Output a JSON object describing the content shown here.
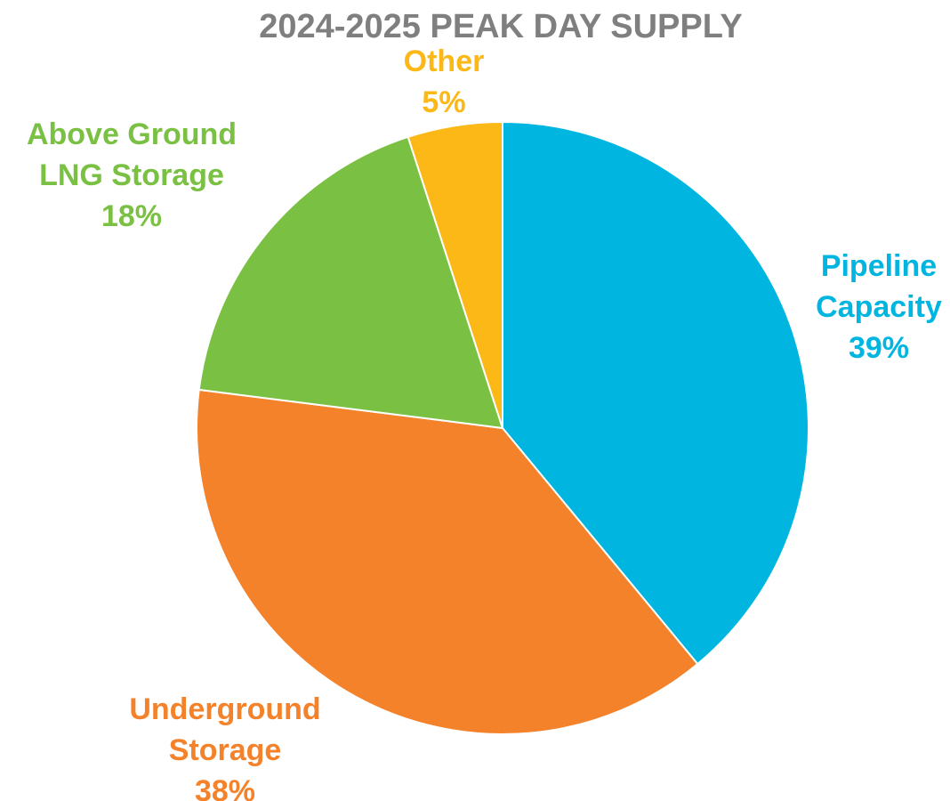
{
  "chart_data": {
    "type": "pie",
    "title": "2024-2025 PEAK DAY SUPPLY",
    "start_angle_deg": 0,
    "direction": "clockwise",
    "legend": "none",
    "slices": [
      {
        "name": "Pipeline Capacity",
        "label_lines": [
          "Pipeline",
          "Capacity"
        ],
        "value": 39,
        "percent_label": "39%",
        "color": "#00b6e1"
      },
      {
        "name": "Underground Storage",
        "label_lines": [
          "Underground",
          "Storage"
        ],
        "value": 38,
        "percent_label": "38%",
        "color": "#f4822a"
      },
      {
        "name": "Above Ground LNG Storage",
        "label_lines": [
          "Above Ground",
          "LNG Storage"
        ],
        "value": 18,
        "percent_label": "18%",
        "color": "#7ac143"
      },
      {
        "name": "Other",
        "label_lines": [
          "Other"
        ],
        "value": 5,
        "percent_label": "5%",
        "color": "#fbb816"
      }
    ]
  }
}
